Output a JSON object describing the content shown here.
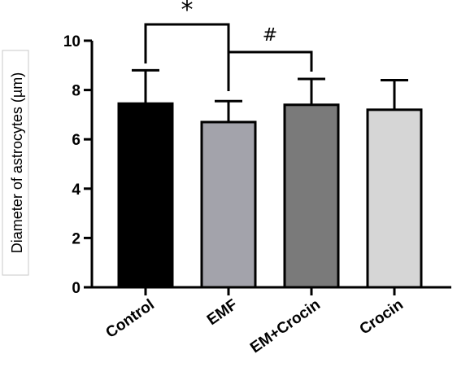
{
  "chart_data": {
    "type": "bar",
    "title": "",
    "xlabel": "",
    "ylabel": "Diameter of astrocytes (µm)",
    "ylim": [
      0,
      10
    ],
    "yticks": [
      "0",
      "2",
      "4",
      "6",
      "8",
      "10"
    ],
    "grid": false,
    "categories": [
      "Control",
      "EMF",
      "EM+Crocin",
      "Crocin"
    ],
    "values": [
      7.45,
      6.7,
      7.4,
      7.2
    ],
    "errors": [
      1.35,
      0.85,
      1.05,
      1.2
    ],
    "colors": [
      "#000000",
      "#a3a3ab",
      "#7a7a7a",
      "#d6d6d6"
    ],
    "significance": [
      {
        "from": 0,
        "to": 1,
        "label": "*"
      },
      {
        "from": 1,
        "to": 2,
        "label": "#"
      }
    ]
  }
}
